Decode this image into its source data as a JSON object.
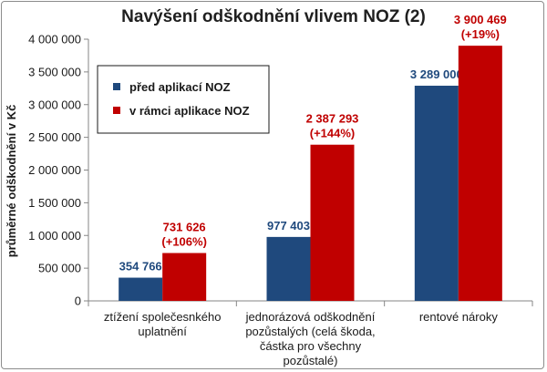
{
  "chart_data": {
    "type": "bar",
    "title": "Navýšení odškodnění vlivem NOZ (2)",
    "ylabel": "průměrné odškodnění v Kč",
    "xlabel": "",
    "ylim": [
      0,
      4000000
    ],
    "yticks": [
      0,
      500000,
      1000000,
      1500000,
      2000000,
      2500000,
      3000000,
      3500000,
      4000000
    ],
    "ytick_labels": [
      "0",
      "500 000",
      "1 000 000",
      "1 500 000",
      "2 000 000",
      "2 500 000",
      "3 000 000",
      "3 500 000",
      "4 000 000"
    ],
    "grid": false,
    "legend_position": "top-left",
    "categories": [
      [
        "ztížení společesnkého",
        "uplatnění"
      ],
      [
        "jednorázová odškodnění",
        "pozůstalých (celá škoda,",
        "částka pro všechny",
        "pozůstalé)"
      ],
      [
        "rentové nároky"
      ]
    ],
    "series": [
      {
        "name": "před aplikací NOZ",
        "color": "#1f497d",
        "values": [
          354766,
          977403,
          3289000
        ],
        "labels": [
          [
            "354 766"
          ],
          [
            "977 403"
          ],
          [
            "3 289 000"
          ]
        ]
      },
      {
        "name": "v rámci aplikace NOZ",
        "color": "#c00000",
        "values": [
          731626,
          2387293,
          3900469
        ],
        "labels": [
          [
            "731 626",
            "(+106%)"
          ],
          [
            "2 387 293",
            "(+144%)"
          ],
          [
            "3 900 469",
            "(+19%)"
          ]
        ]
      }
    ]
  }
}
